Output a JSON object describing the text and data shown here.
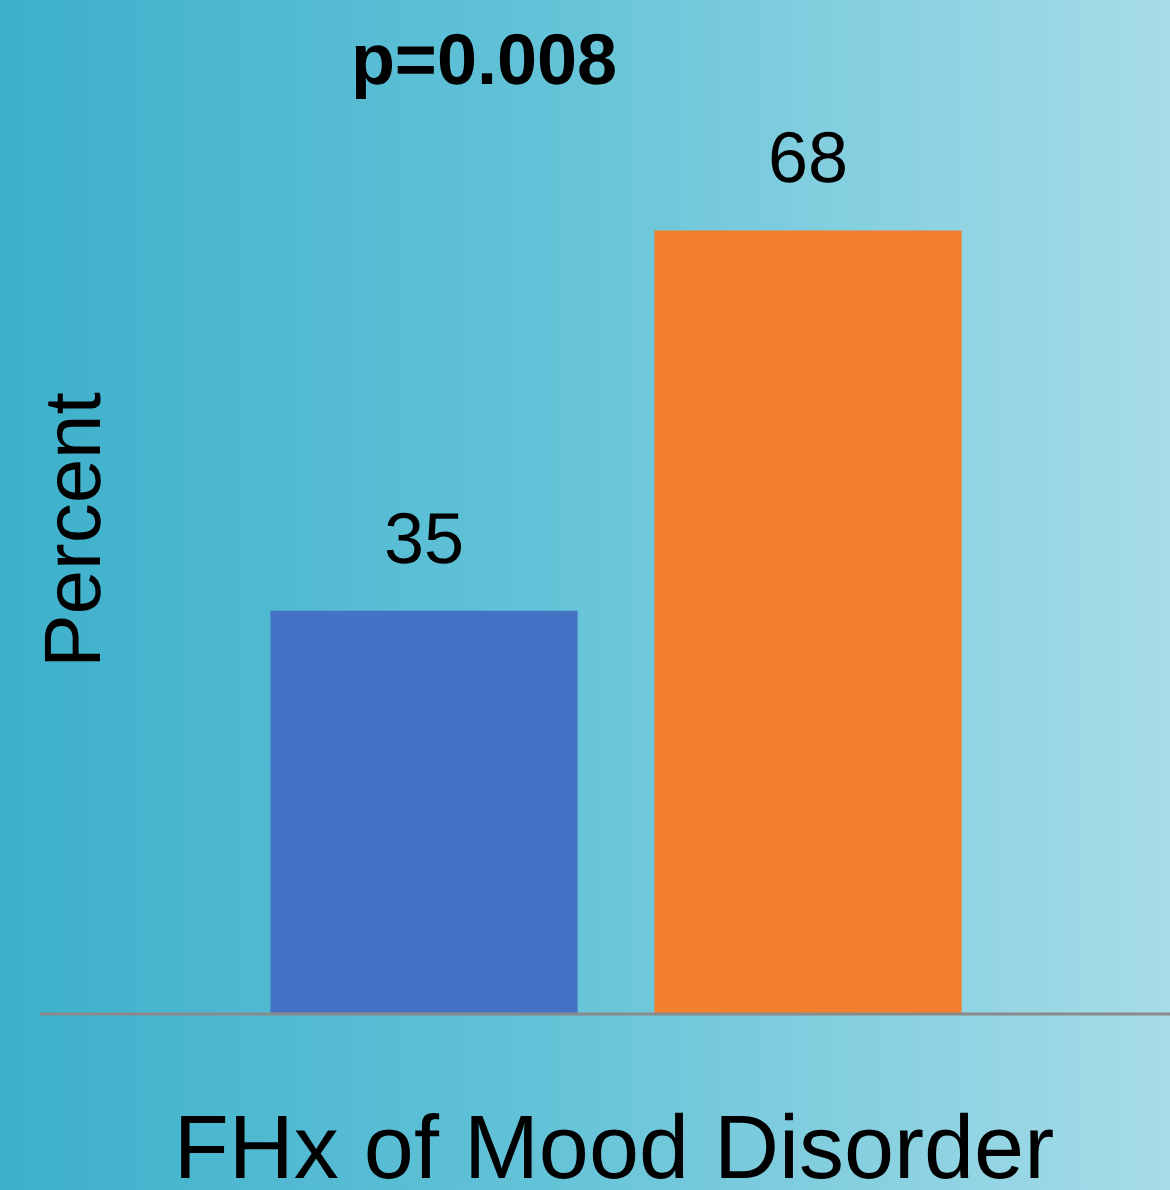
{
  "chart_data": {
    "type": "bar",
    "categories": [
      null,
      null
    ],
    "series": [
      {
        "values": [
          35,
          68
        ],
        "colors": [
          "#4472c4",
          "#f27f30"
        ]
      }
    ],
    "ylim": [
      0,
      88
    ],
    "data_labels": true,
    "legend": false,
    "ylabel": "Percent",
    "xlabel": "FHx of Mood Disorder",
    "annotations": [
      "p=0.008"
    ]
  }
}
